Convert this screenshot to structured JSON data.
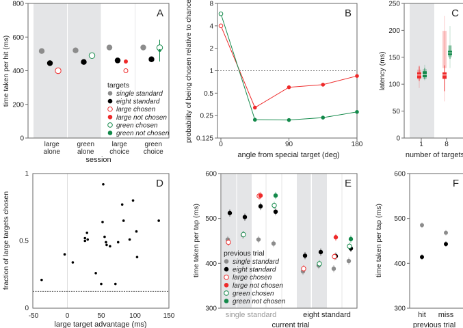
{
  "colors": {
    "gray": "#8c8c8c",
    "black": "#000000",
    "red": "#ee2a2a",
    "green": "#13894a",
    "shade": "#e4e5e7"
  },
  "legend": {
    "title_A": "targets",
    "title_E": "previous trial",
    "items": [
      {
        "label": "single standard",
        "color": "#8c8c8c",
        "open": false
      },
      {
        "label": "eight standard",
        "color": "#000000",
        "open": false
      },
      {
        "label": "large chosen",
        "color": "#ee2a2a",
        "open": true
      },
      {
        "label": "large not chosen",
        "color": "#ee2a2a",
        "open": false
      },
      {
        "label": "green chosen",
        "color": "#13894a",
        "open": true
      },
      {
        "label": "green not chosen",
        "color": "#13894a",
        "open": false
      }
    ]
  },
  "chart_data": [
    {
      "panel": "A",
      "type": "scatter",
      "ylabel": "time taken per hit (ms)",
      "xlabel": "session",
      "ylim": [
        0,
        800
      ],
      "yticks": [
        0,
        200,
        400,
        600,
        800
      ],
      "categories": [
        [
          "large",
          "alone"
        ],
        [
          "green",
          "alone"
        ],
        [
          "large",
          "choice"
        ],
        [
          "green",
          "choice"
        ]
      ],
      "shaded_categories": [
        0,
        1
      ],
      "groups": [
        [
          {
            "s": "single standard",
            "y": 517
          },
          {
            "s": "eight standard",
            "y": 445
          },
          {
            "s": "large chosen",
            "y": 400
          }
        ],
        [
          {
            "s": "single standard",
            "y": 521
          },
          {
            "s": "eight standard",
            "y": 452
          },
          {
            "s": "green chosen",
            "y": 490
          }
        ],
        [
          {
            "s": "single standard",
            "y": 538
          },
          {
            "s": "eight standard",
            "y": 461
          },
          {
            "s": "large not chosen",
            "y": 455
          },
          {
            "s": "large chosen",
            "y": 400
          }
        ],
        [
          {
            "s": "single standard",
            "y": 538
          },
          {
            "s": "eight standard",
            "y": 468
          },
          {
            "s": "green chosen",
            "y": 537,
            "err": [
              455,
              585
            ]
          },
          {
            "s": "green not chosen",
            "y": 520
          }
        ]
      ]
    },
    {
      "panel": "B",
      "type": "line",
      "xlabel": "angle from special target (deg)",
      "ylabel": "probability of being chosen relative to chance",
      "xlim": [
        0,
        180
      ],
      "xticks": [
        0,
        90,
        180
      ],
      "yscale": "log2",
      "ylim": [
        0.125,
        8
      ],
      "yticks": [
        "0.125",
        "0.25",
        "0.5",
        "1",
        "2",
        "4",
        "8"
      ],
      "reference_line": 1,
      "series": [
        {
          "name": "large",
          "color": "#ee2a2a",
          "x": [
            0,
            45,
            90,
            135,
            180
          ],
          "y": [
            4,
            0.32,
            0.6,
            0.65,
            0.85
          ],
          "first_open": true
        },
        {
          "name": "green",
          "color": "#13894a",
          "x": [
            0,
            45,
            90,
            135,
            180
          ],
          "y": [
            5.8,
            0.22,
            0.218,
            0.235,
            0.28
          ],
          "first_open": true
        }
      ]
    },
    {
      "panel": "C",
      "type": "box",
      "xlabel": "number of targets",
      "ylabel": "latency (ms)",
      "ylim": [
        0,
        250
      ],
      "yticks": [
        0,
        50,
        100,
        150,
        200,
        250
      ],
      "categories": [
        "1",
        "8"
      ],
      "shaded_categories": [
        0
      ],
      "boxes": [
        {
          "cat": 0,
          "name": "large",
          "color": "#ee2a2a",
          "median": 117,
          "q": [
            111,
            122
          ],
          "whisker": [
            106,
            133
          ],
          "faint_q": [
            109,
            127
          ],
          "faint_whisker": [
            93,
            135
          ]
        },
        {
          "cat": 0,
          "name": "green",
          "color": "#13894a",
          "median": 118,
          "q": [
            113,
            124
          ],
          "whisker": [
            109,
            130
          ],
          "faint_q": [
            110,
            128
          ],
          "faint_whisker": [
            107,
            136
          ]
        },
        {
          "cat": 1,
          "name": "large",
          "color": "#ee2a2a",
          "median": 117,
          "q": [
            110,
            122
          ],
          "whisker": [
            87,
            135
          ],
          "faint_q": [
            130,
            199
          ],
          "faint_whisker": [
            68,
            227
          ]
        },
        {
          "cat": 1,
          "name": "green",
          "color": "#13894a",
          "median": 158,
          "q": [
            154,
            162
          ],
          "whisker": [
            147,
            172
          ],
          "faint_q": [
            150,
            172
          ],
          "faint_whisker": [
            130,
            208
          ]
        }
      ]
    },
    {
      "panel": "D",
      "type": "scatter",
      "xlabel": "large target advantage (ms)",
      "ylabel": "fraction of large targets chosen",
      "xlim": [
        -50,
        150
      ],
      "xticks": [
        "-50",
        "0",
        "50",
        "100",
        "150"
      ],
      "ylim": [
        0,
        1
      ],
      "yticks": [
        "0",
        "0.5",
        "1"
      ],
      "reference_line": 0.125,
      "x": [
        -38,
        -4,
        8,
        26,
        26,
        29,
        30,
        42,
        50,
        52,
        53,
        55,
        57,
        58,
        63,
        71,
        75,
        81,
        83,
        92,
        97,
        102,
        103,
        135
      ],
      "y": [
        0.21,
        0.4,
        0.34,
        0.52,
        0.5,
        0.56,
        0.51,
        0.26,
        0.18,
        0.64,
        0.92,
        0.53,
        0.49,
        0.47,
        0.46,
        0.18,
        0.49,
        0.77,
        0.65,
        0.51,
        0.8,
        0.57,
        0.38,
        0.65
      ]
    },
    {
      "panel": "E",
      "type": "scatter",
      "xlabel": "current trial",
      "ylabel": "time taken per tap (ms)",
      "ylim": [
        300,
        600
      ],
      "yticks": [
        300,
        400,
        500,
        600
      ],
      "categories": [
        "single standard",
        "eight standard"
      ],
      "groups": [
        [
          {
            "s": "single standard",
            "y": 453
          },
          {
            "s": "eight standard",
            "y": 512
          },
          {
            "s": "large chosen",
            "y": 447
          }
        ],
        [
          {
            "s": "single standard",
            "y": 463
          },
          {
            "s": "eight standard",
            "y": 503
          },
          {
            "s": "green chosen",
            "y": 464
          }
        ],
        [
          {
            "s": "single standard",
            "y": 453
          },
          {
            "s": "eight standard",
            "y": 527
          },
          {
            "s": "large chosen",
            "y": 550
          },
          {
            "s": "large not chosen",
            "y": 551
          }
        ],
        [
          {
            "s": "single standard",
            "y": 444
          },
          {
            "s": "eight standard",
            "y": 515
          },
          {
            "s": "green chosen",
            "y": 529
          },
          {
            "s": "green not chosen",
            "y": 551
          }
        ],
        [
          {
            "s": "single standard",
            "y": 382
          },
          {
            "s": "eight standard",
            "y": 417
          },
          {
            "s": "large chosen",
            "y": 388
          }
        ],
        [
          {
            "s": "single standard",
            "y": 395
          },
          {
            "s": "eight standard",
            "y": 425
          },
          {
            "s": "green chosen",
            "y": 399
          }
        ],
        [
          {
            "s": "single standard",
            "y": 388
          },
          {
            "s": "eight standard",
            "y": 416
          },
          {
            "s": "large chosen",
            "y": 415
          },
          {
            "s": "large not chosen",
            "y": 458
          }
        ],
        [
          {
            "s": "single standard",
            "y": 405
          },
          {
            "s": "eight standard",
            "y": 433
          },
          {
            "s": "green chosen",
            "y": 438
          },
          {
            "s": "green not chosen",
            "y": 454
          }
        ]
      ]
    },
    {
      "panel": "F",
      "type": "scatter",
      "xlabel": "previous trial",
      "ylabel": "time taken per tap (ms)",
      "ylim": [
        300,
        600
      ],
      "yticks": [
        300,
        400,
        500,
        600
      ],
      "categories": [
        "hit",
        "miss"
      ],
      "groups": [
        [
          {
            "s": "single standard",
            "y": 485
          },
          {
            "s": "eight standard",
            "y": 414
          }
        ],
        [
          {
            "s": "single standard",
            "y": 468
          },
          {
            "s": "eight standard",
            "y": 443
          }
        ]
      ]
    }
  ]
}
